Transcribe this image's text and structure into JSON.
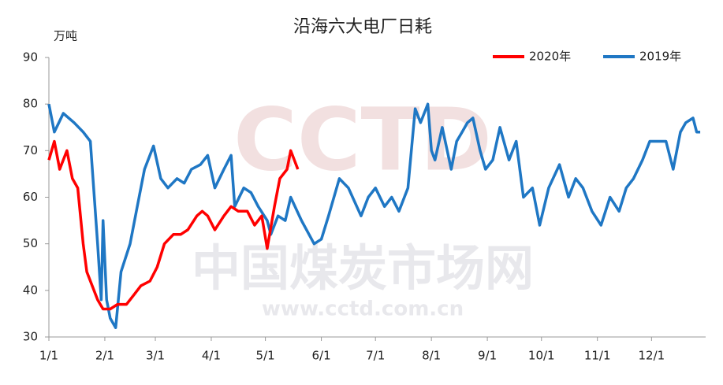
{
  "chart_data": {
    "type": "line",
    "title": "沿海六大电厂日耗",
    "ylabel": "万吨",
    "watermark": [
      "CCTD",
      "中国煤炭市场网",
      "www.cctd.com.cn"
    ],
    "xlim": [
      0,
      364
    ],
    "xticks": [
      {
        "value": 0,
        "label": "1/1"
      },
      {
        "value": 31,
        "label": "2/1"
      },
      {
        "value": 59,
        "label": "3/1"
      },
      {
        "value": 90,
        "label": "4/1"
      },
      {
        "value": 120,
        "label": "5/1"
      },
      {
        "value": 151,
        "label": "6/1"
      },
      {
        "value": 181,
        "label": "7/1"
      },
      {
        "value": 212,
        "label": "8/1"
      },
      {
        "value": 243,
        "label": "9/1"
      },
      {
        "value": 273,
        "label": "10/1"
      },
      {
        "value": 304,
        "label": "11/1"
      },
      {
        "value": 334,
        "label": "12/1"
      }
    ],
    "ylim": [
      30,
      90
    ],
    "yticks": [
      30,
      40,
      50,
      60,
      70,
      80,
      90
    ],
    "grid": false,
    "legend": "top-right",
    "series": [
      {
        "name": "2020年",
        "color": "#ff0000",
        "x": [
          0,
          3,
          6,
          10,
          13,
          16,
          19,
          21,
          24,
          27,
          30,
          34,
          38,
          43,
          47,
          51,
          56,
          60,
          64,
          69,
          73,
          77,
          82,
          85,
          88,
          92,
          97,
          101,
          105,
          110,
          114,
          118,
          121,
          125,
          128,
          132,
          134,
          138
        ],
        "values": [
          68,
          72,
          66,
          70,
          64,
          62,
          50,
          44,
          41,
          38,
          36,
          36,
          37,
          37,
          39,
          41,
          42,
          45,
          50,
          52,
          52,
          53,
          56,
          57,
          56,
          53,
          56,
          58,
          57,
          57,
          54,
          56,
          49,
          58,
          64,
          66,
          70,
          66
        ]
      },
      {
        "name": "2019年",
        "color": "#1f77c4",
        "x": [
          0,
          3,
          8,
          14,
          19,
          23,
          27,
          29,
          30,
          32,
          34,
          37,
          40,
          45,
          49,
          53,
          58,
          62,
          66,
          71,
          75,
          79,
          84,
          88,
          92,
          97,
          101,
          103,
          108,
          112,
          116,
          121,
          123,
          127,
          131,
          134,
          140,
          147,
          151,
          155,
          161,
          166,
          173,
          177,
          181,
          186,
          190,
          194,
          199,
          203,
          206,
          210,
          212,
          214,
          218,
          223,
          226,
          229,
          232,
          235,
          239,
          242,
          246,
          250,
          255,
          259,
          263,
          268,
          272,
          277,
          283,
          288,
          292,
          296,
          301,
          306,
          311,
          316,
          320,
          324,
          329,
          333,
          338,
          342,
          346,
          350,
          353,
          357,
          359,
          361
        ],
        "values": [
          80,
          74,
          78,
          76,
          74,
          72,
          50,
          38,
          55,
          38,
          34,
          32,
          44,
          50,
          58,
          66,
          71,
          64,
          62,
          64,
          63,
          66,
          67,
          69,
          62,
          66,
          69,
          58,
          62,
          61,
          58,
          55,
          52,
          56,
          55,
          60,
          55,
          50,
          51,
          56,
          64,
          62,
          56,
          60,
          62,
          58,
          60,
          57,
          62,
          79,
          76,
          80,
          70,
          68,
          75,
          66,
          72,
          74,
          76,
          77,
          70,
          66,
          68,
          75,
          68,
          72,
          60,
          62,
          54,
          62,
          67,
          60,
          64,
          62,
          57,
          54,
          60,
          57,
          62,
          64,
          68,
          72,
          72,
          72,
          66,
          74,
          76,
          77,
          74,
          74
        ]
      }
    ]
  }
}
